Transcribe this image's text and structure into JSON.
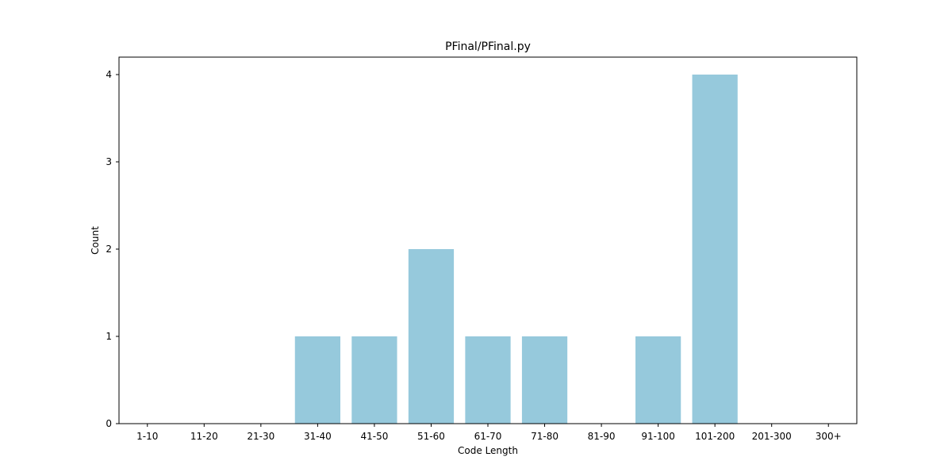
{
  "chart_data": {
    "type": "bar",
    "title": "PFinal/PFinal.py",
    "xlabel": "Code Length",
    "ylabel": "Count",
    "categories": [
      "1-10",
      "11-20",
      "21-30",
      "31-40",
      "41-50",
      "51-60",
      "61-70",
      "71-80",
      "81-90",
      "91-100",
      "101-200",
      "201-300",
      "300+"
    ],
    "values": [
      0,
      0,
      0,
      1,
      1,
      2,
      1,
      1,
      0,
      1,
      4,
      0,
      0
    ],
    "yticks": [
      "0",
      "1",
      "2",
      "3",
      "4"
    ],
    "ylim": [
      0,
      4.2
    ],
    "grid": false,
    "bar_color": "#96c9dc"
  }
}
